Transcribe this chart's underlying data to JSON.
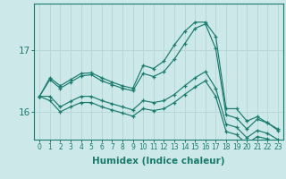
{
  "xlabel": "Humidex (Indice chaleur)",
  "ylabel": "",
  "background_color": "#cce8e8",
  "line_color": "#1a7a6e",
  "grid_color": "#b8d8d8",
  "yticks": [
    16,
    17
  ],
  "xlim": [
    -0.5,
    23.5
  ],
  "ylim": [
    15.55,
    17.75
  ],
  "series": [
    [
      16.25,
      16.55,
      16.42,
      16.52,
      16.62,
      16.63,
      16.55,
      16.48,
      16.42,
      16.38,
      16.75,
      16.7,
      16.82,
      17.08,
      17.3,
      17.45,
      17.45,
      17.22,
      16.05,
      16.05,
      15.85,
      15.92,
      15.82,
      15.72
    ],
    [
      16.25,
      16.52,
      16.38,
      16.48,
      16.58,
      16.6,
      16.5,
      16.44,
      16.38,
      16.34,
      16.62,
      16.57,
      16.65,
      16.85,
      17.1,
      17.35,
      17.42,
      17.02,
      15.95,
      15.9,
      15.72,
      15.88,
      15.82,
      15.7
    ],
    [
      16.25,
      16.25,
      16.08,
      16.17,
      16.25,
      16.25,
      16.18,
      16.13,
      16.08,
      16.03,
      16.18,
      16.15,
      16.18,
      16.28,
      16.42,
      16.55,
      16.65,
      16.38,
      15.8,
      15.75,
      15.58,
      15.7,
      15.65,
      15.55
    ],
    [
      16.25,
      16.18,
      16.0,
      16.08,
      16.15,
      16.15,
      16.08,
      16.03,
      15.98,
      15.93,
      16.05,
      16.02,
      16.05,
      16.15,
      16.28,
      16.4,
      16.5,
      16.25,
      15.68,
      15.63,
      15.48,
      15.6,
      15.56,
      15.45
    ]
  ]
}
